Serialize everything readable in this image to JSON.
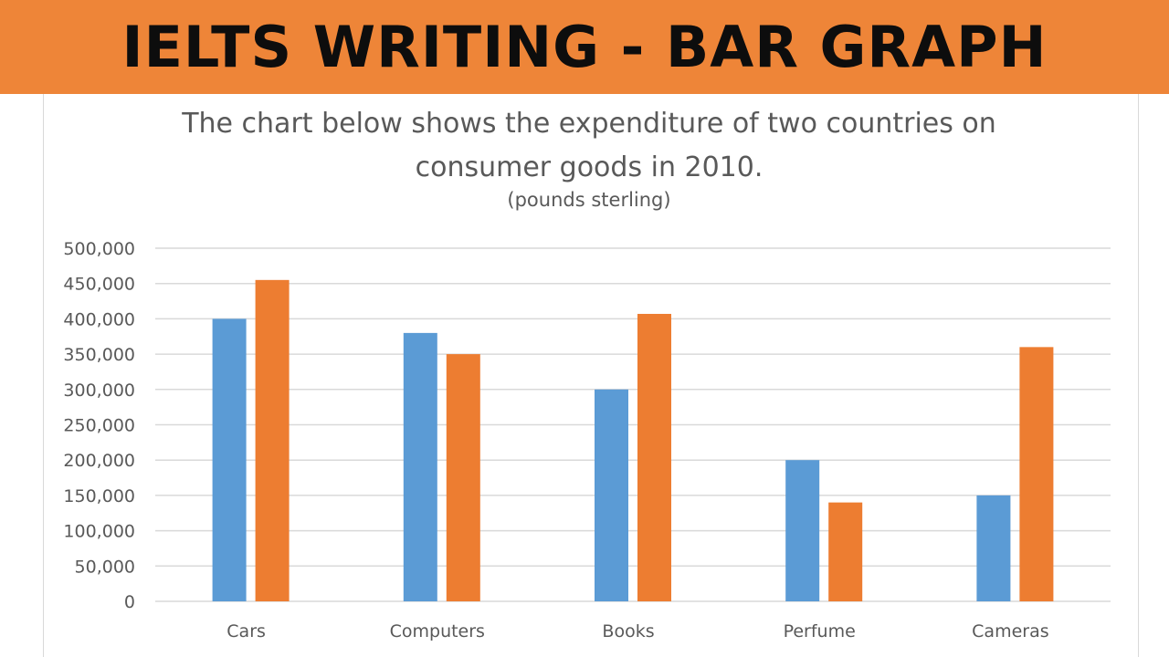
{
  "banner": {
    "title": "IELTS WRITING - BAR GRAPH"
  },
  "colors": {
    "banner": "#ee8538",
    "series_1": "#5b9bd5",
    "series_2": "#ed7d31",
    "grid": "#d9d9d9",
    "text": "#595959"
  },
  "chart_data": {
    "type": "bar",
    "title_line1": "The chart below shows the expenditure of two countries on",
    "title_line2": "consumer goods in 2010.",
    "subtitle": "(pounds sterling)",
    "xlabel": "",
    "ylabel": "",
    "categories": [
      "Cars",
      "Computers",
      "Books",
      "Perfume",
      "Cameras"
    ],
    "series": [
      {
        "values": [
          400000,
          380000,
          300000,
          200000,
          150000
        ]
      },
      {
        "values": [
          455000,
          350000,
          407000,
          140000,
          360000
        ]
      }
    ],
    "ylim": [
      0,
      500000
    ],
    "y_ticks": [
      "0",
      "50,000",
      "100,000",
      "150,000",
      "200,000",
      "250,000",
      "300,000",
      "350,000",
      "400,000",
      "450,000",
      "500,000"
    ],
    "grid": true,
    "legend": "none"
  }
}
